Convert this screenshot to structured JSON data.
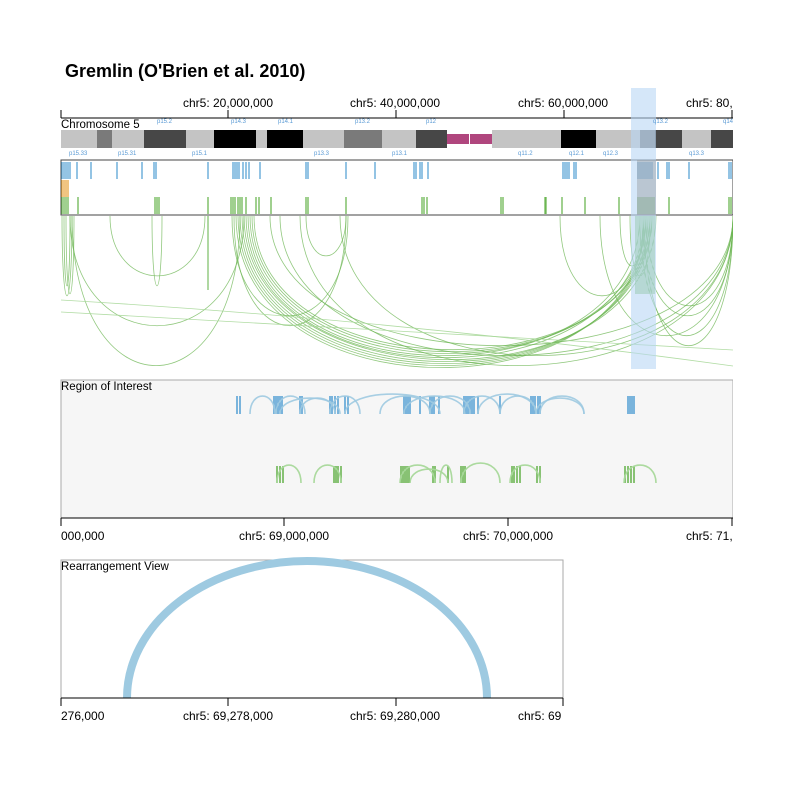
{
  "title": "Gremlin (O'Brien et al. 2010)",
  "overview": {
    "axis_ticks": [
      "chr5: 20,000,000",
      "chr5: 40,000,000",
      "chr5: 60,000,000",
      "chr5: 80,"
    ],
    "label": "Chromosome 5",
    "band_labels_top": [
      "p15.2",
      "p14.3",
      "p14.1",
      "p13.2",
      "p12",
      "q13.2",
      "q14"
    ],
    "band_labels_bottom": [
      "p15.33",
      "p15.31",
      "p15.1",
      "p13.3",
      "p13.1",
      "q11.2",
      "q12.1",
      "q12.3",
      "q13.3"
    ]
  },
  "roi": {
    "label": "Region of Interest",
    "axis_ticks": [
      "000,000",
      "chr5: 69,000,000",
      "chr5: 70,000,000",
      "chr5: 71,"
    ]
  },
  "rearrangement": {
    "label": "Rearrangement View",
    "axis_ticks": [
      "276,000",
      "chr5: 69,278,000",
      "chr5: 69,280,000",
      "chr5: 69"
    ]
  },
  "colors": {
    "blue": "#5ba3d6",
    "light_blue": "#9ecae1",
    "green": "#6cb653",
    "light_green": "#a8d89a",
    "orange": "#e8a33d",
    "highlight": "#b9d7f5",
    "centromere": "#b0467e"
  }
}
